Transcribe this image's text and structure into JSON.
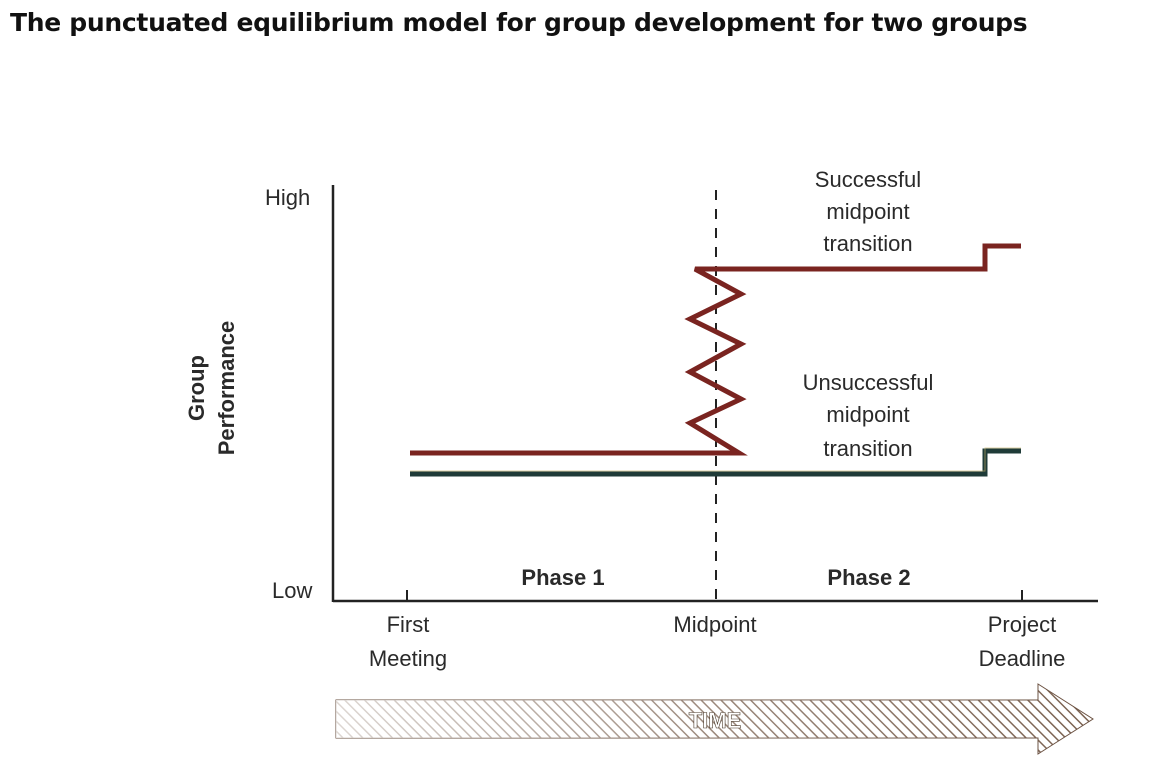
{
  "title": "The punctuated equilibrium model for group development for two groups",
  "axis": {
    "y_label_line1": "Group",
    "y_label_line2": "Performance",
    "y_high": "High",
    "y_low": "Low"
  },
  "x_ticks": {
    "first_line1": "First",
    "first_line2": "Meeting",
    "midpoint": "Midpoint",
    "deadline_line1": "Project",
    "deadline_line2": "Deadline"
  },
  "phases": {
    "phase1": "Phase 1",
    "phase2": "Phase 2"
  },
  "annotations": {
    "successful": [
      "Successful",
      "midpoint",
      "transition"
    ],
    "unsuccessful": [
      "Unsuccessful",
      "midpoint",
      "transition"
    ]
  },
  "time_arrow_label": "TIME",
  "colors": {
    "successful_line": "#7a2420",
    "unsuccessful_line": "#1f3b38",
    "axis": "#222222",
    "arrow_dark": "#5a3d2a"
  }
}
